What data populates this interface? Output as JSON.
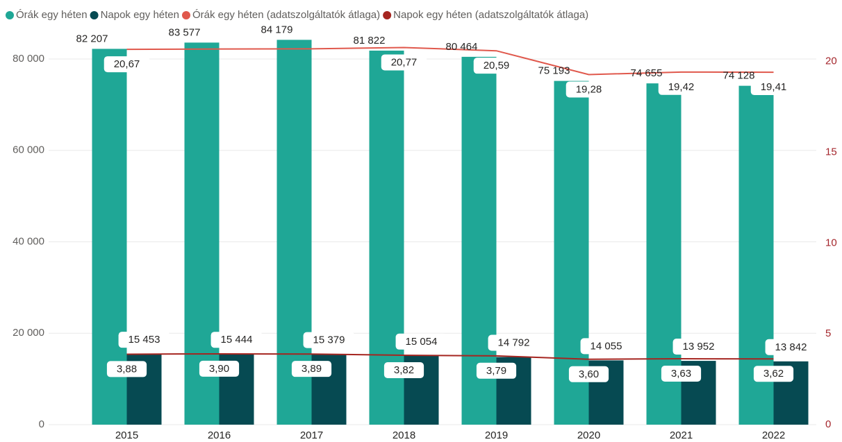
{
  "chart_data": {
    "type": "bar_line_combo",
    "categories": [
      "2015",
      "2016",
      "2017",
      "2018",
      "2019",
      "2020",
      "2021",
      "2022"
    ],
    "ylim": [
      0,
      85000
    ],
    "yticks": [
      0,
      {
        "value": 20000,
        "label": "20 000"
      },
      {
        "value": 40000,
        "label": "40 000"
      },
      {
        "value": 60000,
        "label": "60 000"
      },
      {
        "value": 80000,
        "label": "80 000"
      }
    ],
    "y2lim": [
      0,
      21.4
    ],
    "y2ticks": [
      0,
      5,
      10,
      15,
      20
    ],
    "grid": true,
    "legend": "top-left",
    "series": [
      {
        "name": "Órák egy héten",
        "type": "bar",
        "color": "#1fa796",
        "values": [
          82207,
          83577,
          84179,
          81822,
          80464,
          75193,
          74655,
          74128
        ],
        "value_labels": [
          "82 207",
          "83 577",
          "84 179",
          "81 822",
          "80 464",
          "75 193",
          "74 655",
          "74 128"
        ]
      },
      {
        "name": "Napok egy héten",
        "type": "bar",
        "color": "#064a52",
        "values": [
          15453,
          15444,
          15379,
          15054,
          14792,
          14055,
          13952,
          13842
        ],
        "value_labels": [
          "15 453",
          "15 444",
          "15 379",
          "15 054",
          "14 792",
          "14 055",
          "13 952",
          "13 842"
        ]
      },
      {
        "name": "Órák egy héten (adatszolgáltatók átlaga)",
        "type": "line",
        "axis": "y2",
        "color": "#e0584c",
        "values": [
          20.67,
          20.69,
          20.7,
          20.77,
          20.59,
          19.28,
          19.42,
          19.41
        ],
        "value_labels": [
          "20,67",
          null,
          null,
          "20,77",
          "20,59",
          "19,28",
          "19,42",
          "19,41"
        ]
      },
      {
        "name": "Napok egy héten (adatszolgáltatók átlaga)",
        "type": "line",
        "axis": "y2",
        "color": "#a52520",
        "values": [
          3.88,
          3.9,
          3.89,
          3.82,
          3.79,
          3.6,
          3.63,
          3.62
        ],
        "value_labels": [
          "3,88",
          "3,90",
          "3,89",
          "3,82",
          "3,79",
          "3,60",
          "3,63",
          "3,62"
        ]
      }
    ]
  }
}
